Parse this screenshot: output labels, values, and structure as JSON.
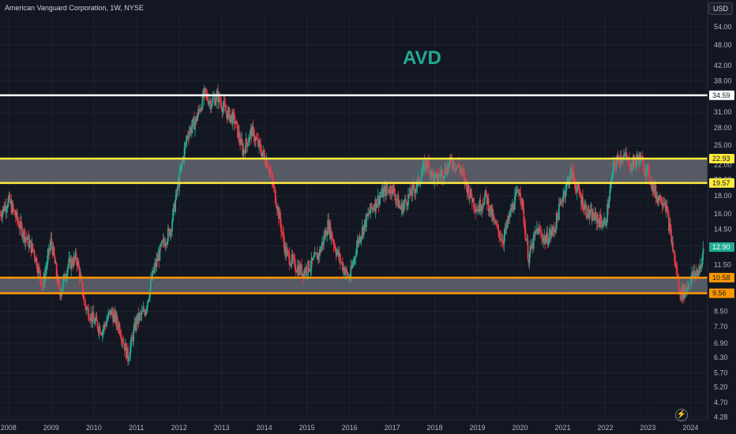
{
  "header": {
    "symbol_line": "American Vanguard Corporation, 1W, NYSE",
    "currency_badge": "USD",
    "ticker_label": "AVD"
  },
  "colors": {
    "background": "#131722",
    "grid": "#1e222d",
    "up": "#22ab94",
    "down": "#f23645",
    "resistance_line": "#ffffff",
    "yellow_zone": "#ffeb3b",
    "orange_zone": "#ff9800",
    "zone_fill": "#7a7e8a",
    "axis_text": "#b2b5be"
  },
  "icons": {
    "bottom_right": "tradingview-icon"
  },
  "chart_data": {
    "type": "candlestick",
    "title": "American Vanguard Corporation, 1W, NYSE",
    "xlabel": "",
    "ylabel": "",
    "y_scale": "log",
    "ylim": [
      4.2,
      58
    ],
    "x_range": [
      2007.8,
      2024.4
    ],
    "x_ticks": [
      "2008",
      "2009",
      "2010",
      "2011",
      "2012",
      "2013",
      "2014",
      "2015",
      "2016",
      "2017",
      "2018",
      "2019",
      "2020",
      "2021",
      "2022",
      "2023",
      "2024"
    ],
    "y_ticks": [
      "54.00",
      "48.00",
      "42.00",
      "38.00",
      "31.00",
      "28.00",
      "25.00",
      "22.00",
      "20.00",
      "18.00",
      "16.00",
      "14.50",
      "13.00",
      "11.50",
      "10.50",
      "9.50",
      "8.50",
      "7.70",
      "6.90",
      "6.30",
      "5.70",
      "5.20",
      "4.70",
      "4.28"
    ],
    "last_price": 12.9,
    "horizontal_levels": [
      {
        "value": 34.59,
        "label": "34.59",
        "color": "#ffffff"
      },
      {
        "value": 22.93,
        "label": "22.93",
        "color": "#ffeb3b"
      },
      {
        "value": 19.57,
        "label": "19.57",
        "color": "#ffeb3b"
      },
      {
        "value": 10.58,
        "label": "10.58",
        "color": "#ff9800"
      },
      {
        "value": 9.56,
        "label": "9.56",
        "color": "#ff9800"
      }
    ],
    "zones": [
      {
        "from": 19.57,
        "to": 22.93,
        "name": "resistance zone"
      },
      {
        "from": 9.56,
        "to": 10.58,
        "name": "support zone"
      }
    ],
    "price_path": [
      [
        2007.8,
        16.0
      ],
      [
        2008.0,
        17.5
      ],
      [
        2008.3,
        14.5
      ],
      [
        2008.6,
        12.5
      ],
      [
        2008.8,
        10.0
      ],
      [
        2009.0,
        13.5
      ],
      [
        2009.2,
        9.5
      ],
      [
        2009.4,
        11.5
      ],
      [
        2009.6,
        12.0
      ],
      [
        2009.8,
        8.8
      ],
      [
        2010.0,
        8.0
      ],
      [
        2010.2,
        7.5
      ],
      [
        2010.4,
        8.5
      ],
      [
        2010.6,
        7.7
      ],
      [
        2010.8,
        6.3
      ],
      [
        2011.0,
        8.0
      ],
      [
        2011.2,
        8.5
      ],
      [
        2011.4,
        11.0
      ],
      [
        2011.6,
        13.0
      ],
      [
        2011.8,
        14.5
      ],
      [
        2012.0,
        20.0
      ],
      [
        2012.2,
        27.0
      ],
      [
        2012.4,
        29.5
      ],
      [
        2012.6,
        35.0
      ],
      [
        2012.75,
        33.0
      ],
      [
        2012.9,
        34.5
      ],
      [
        2013.1,
        31.0
      ],
      [
        2013.3,
        29.5
      ],
      [
        2013.5,
        24.0
      ],
      [
        2013.7,
        27.5
      ],
      [
        2013.9,
        24.5
      ],
      [
        2014.1,
        22.0
      ],
      [
        2014.3,
        17.0
      ],
      [
        2014.5,
        12.5
      ],
      [
        2014.7,
        11.5
      ],
      [
        2014.9,
        11.0
      ],
      [
        2015.1,
        11.5
      ],
      [
        2015.3,
        12.5
      ],
      [
        2015.5,
        15.0
      ],
      [
        2015.7,
        12.5
      ],
      [
        2015.9,
        11.0
      ],
      [
        2016.0,
        10.5
      ],
      [
        2016.2,
        13.5
      ],
      [
        2016.5,
        16.5
      ],
      [
        2016.8,
        18.5
      ],
      [
        2017.0,
        19.0
      ],
      [
        2017.2,
        16.5
      ],
      [
        2017.4,
        18.0
      ],
      [
        2017.6,
        19.5
      ],
      [
        2017.8,
        22.5
      ],
      [
        2018.0,
        20.0
      ],
      [
        2018.2,
        21.0
      ],
      [
        2018.4,
        22.5
      ],
      [
        2018.6,
        21.5
      ],
      [
        2018.8,
        18.5
      ],
      [
        2019.0,
        16.5
      ],
      [
        2019.2,
        18.0
      ],
      [
        2019.4,
        15.0
      ],
      [
        2019.6,
        13.5
      ],
      [
        2019.8,
        16.5
      ],
      [
        2020.0,
        19.0
      ],
      [
        2020.2,
        12.0
      ],
      [
        2020.4,
        14.5
      ],
      [
        2020.6,
        13.5
      ],
      [
        2020.8,
        14.5
      ],
      [
        2021.0,
        18.0
      ],
      [
        2021.2,
        21.0
      ],
      [
        2021.4,
        18.0
      ],
      [
        2021.6,
        16.0
      ],
      [
        2021.8,
        15.5
      ],
      [
        2022.0,
        15.0
      ],
      [
        2022.2,
        22.0
      ],
      [
        2022.4,
        23.5
      ],
      [
        2022.6,
        22.0
      ],
      [
        2022.8,
        23.0
      ],
      [
        2023.0,
        21.0
      ],
      [
        2023.2,
        18.0
      ],
      [
        2023.4,
        17.5
      ],
      [
        2023.6,
        12.5
      ],
      [
        2023.75,
        9.5
      ],
      [
        2023.9,
        9.8
      ],
      [
        2024.0,
        10.5
      ],
      [
        2024.15,
        11.0
      ],
      [
        2024.25,
        11.2
      ],
      [
        2024.3,
        12.9
      ]
    ]
  }
}
